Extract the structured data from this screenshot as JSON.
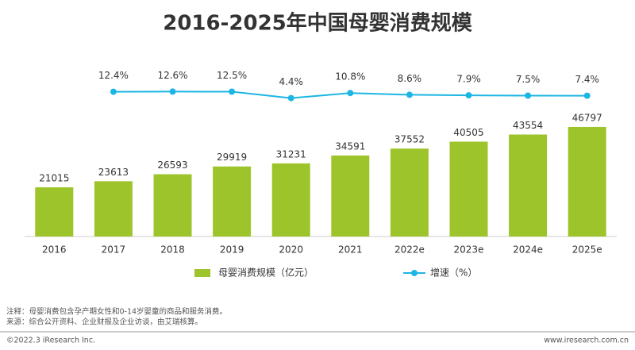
{
  "chart_data": {
    "type": "bar",
    "title": "2016-2025年中国母婴消费规模",
    "categories": [
      "2016",
      "2017",
      "2018",
      "2019",
      "2020",
      "2021",
      "2022e",
      "2023e",
      "2024e",
      "2025e"
    ],
    "series": [
      {
        "name": "母婴消费规模（亿元）",
        "type": "bar",
        "color": "#9dc52b",
        "values": [
          21015,
          23613,
          26593,
          29919,
          31231,
          34591,
          37552,
          40505,
          43554,
          46797
        ]
      },
      {
        "name": "增速（%）",
        "type": "line",
        "axis": "y2",
        "color": "#1db6e4",
        "values": [
          null,
          12.4,
          12.6,
          12.5,
          4.4,
          10.8,
          8.6,
          7.9,
          7.5,
          7.4
        ],
        "value_labels": [
          null,
          "12.4%",
          "12.6%",
          "12.5%",
          "4.4%",
          "10.8%",
          "8.6%",
          "7.9%",
          "7.5%",
          "7.4%"
        ]
      }
    ],
    "ylim": [
      0,
      80000
    ],
    "y2lim": [
      -170,
      66
    ],
    "legend": "bottom"
  },
  "notes": [
    "注释：母婴消费包含孕产期女性和0-14岁婴童的商品和服务消费。",
    "来源：综合公开资料、企业财报及企业访谈，由艾瑞核算。"
  ],
  "footer": {
    "copyright": "©2022.3 iResearch Inc.",
    "website": "www.iresearch.com.cn"
  }
}
